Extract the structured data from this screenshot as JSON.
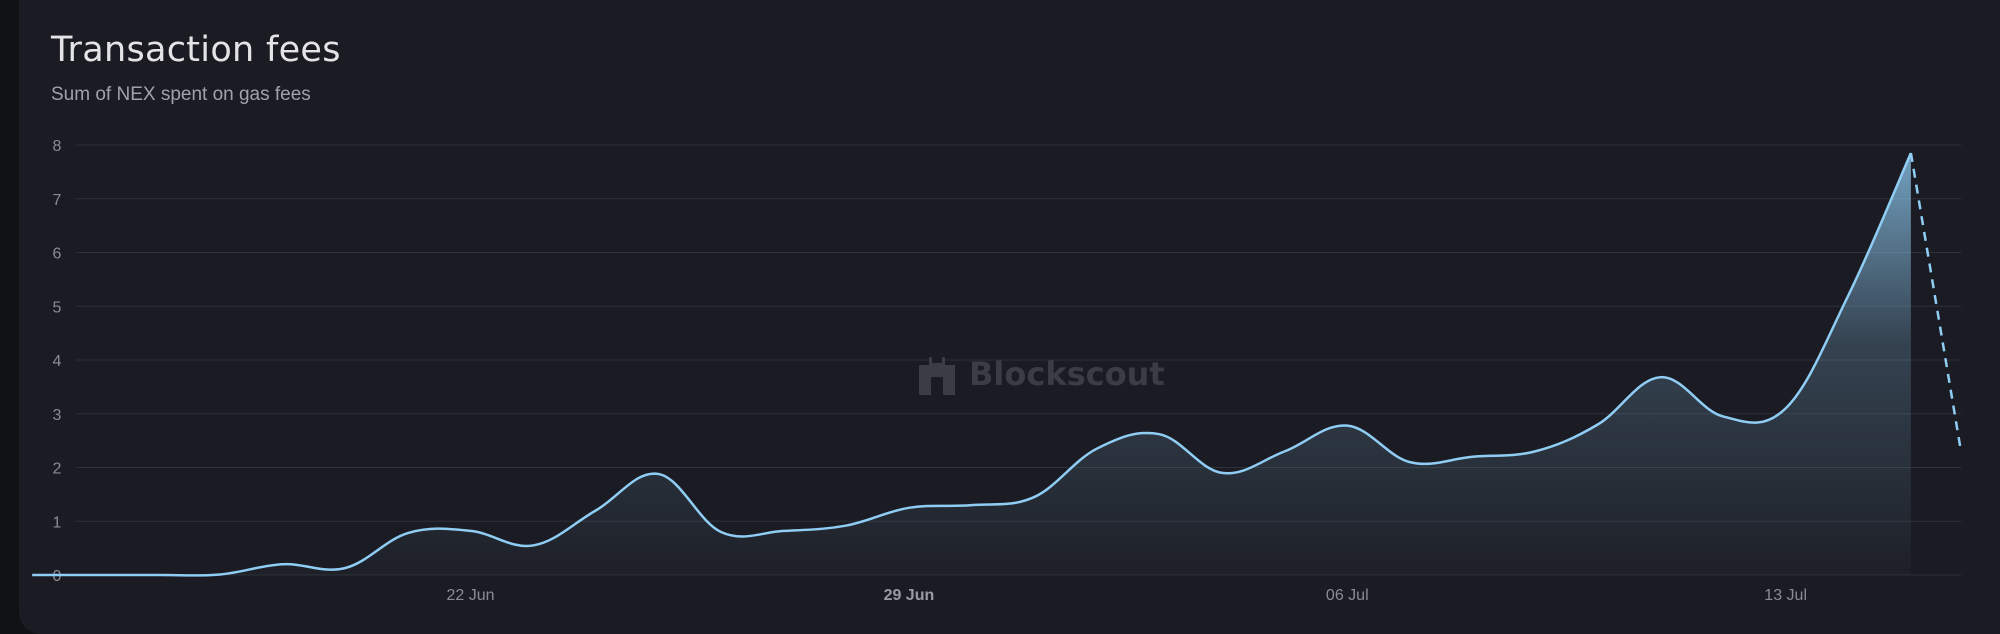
{
  "card": {
    "title": "Transaction fees",
    "subtitle": "Sum of NEX spent on gas fees"
  },
  "watermark": {
    "text": "Blockscout",
    "icon": "blockscout-logo-icon"
  },
  "colors": {
    "line": "#90cdf4",
    "area_top": "#90cdf4",
    "grid": "#2e303a",
    "tick": "#8b8b94"
  },
  "chart_data": {
    "type": "area",
    "title": "Transaction fees",
    "subtitle": "Sum of NEX spent on gas fees",
    "xlabel": "",
    "ylabel": "",
    "ylim": [
      0,
      8
    ],
    "yticks": [
      0,
      1,
      2,
      3,
      4,
      5,
      6,
      7,
      8
    ],
    "grid": true,
    "x_tick_labels": [
      {
        "label": "22 Jun",
        "index": 7,
        "bold": false
      },
      {
        "label": "29 Jun",
        "index": 14,
        "bold": true
      },
      {
        "label": "06 Jul",
        "index": 21,
        "bold": false
      },
      {
        "label": "13 Jul",
        "index": 28,
        "bold": false
      }
    ],
    "x_start_index": 0.7,
    "x_end_index": 30.8,
    "series": [
      {
        "values": [
          0,
          0,
          0,
          0.01,
          0.2,
          0.13,
          0.78,
          0.82,
          0.55,
          1.2,
          1.88,
          0.8,
          0.82,
          0.92,
          1.25,
          1.3,
          1.45,
          2.35,
          2.62,
          1.9,
          2.3,
          2.78,
          2.1,
          2.2,
          2.3,
          2.8,
          3.68,
          2.95,
          3.1,
          5.2,
          7.85
        ],
        "x_index_start": 0,
        "solid_until_index": 30
      }
    ],
    "projection": {
      "from_index": 30,
      "to_x_index": 31,
      "value": 2.3,
      "style": "dashed"
    }
  }
}
